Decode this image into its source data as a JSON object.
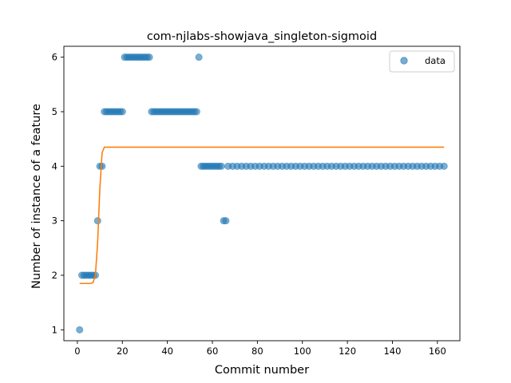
{
  "chart_data": {
    "type": "scatter",
    "title": "com-njlabs-showjava_singleton-sigmoid",
    "xlabel": "Commit number",
    "ylabel": "Number of instance of a feature",
    "xlim": [
      -6,
      170
    ],
    "ylim": [
      0.8,
      6.2
    ],
    "xticks": [
      0,
      20,
      40,
      60,
      80,
      100,
      120,
      140,
      160
    ],
    "yticks": [
      1,
      2,
      3,
      4,
      5,
      6
    ],
    "grid": false,
    "legend": {
      "position": "top-right",
      "entries": [
        "data"
      ]
    },
    "colors": {
      "data": "#1f77b4",
      "fit": "#ff7f0e"
    },
    "series": [
      {
        "name": "data",
        "kind": "scatter",
        "points": [
          [
            1,
            1
          ],
          [
            2,
            2
          ],
          [
            3,
            2
          ],
          [
            4,
            2
          ],
          [
            5,
            2
          ],
          [
            6,
            2
          ],
          [
            7,
            2
          ],
          [
            8,
            2
          ],
          [
            9,
            3
          ],
          [
            10,
            4
          ],
          [
            11,
            4
          ],
          [
            12,
            5
          ],
          [
            13,
            5
          ],
          [
            14,
            5
          ],
          [
            15,
            5
          ],
          [
            16,
            5
          ],
          [
            17,
            5
          ],
          [
            18,
            5
          ],
          [
            19,
            5
          ],
          [
            20,
            5
          ],
          [
            21,
            6
          ],
          [
            22,
            6
          ],
          [
            23,
            6
          ],
          [
            24,
            6
          ],
          [
            25,
            6
          ],
          [
            26,
            6
          ],
          [
            27,
            6
          ],
          [
            28,
            6
          ],
          [
            29,
            6
          ],
          [
            30,
            6
          ],
          [
            31,
            6
          ],
          [
            32,
            6
          ],
          [
            33,
            5
          ],
          [
            34,
            5
          ],
          [
            35,
            5
          ],
          [
            36,
            5
          ],
          [
            37,
            5
          ],
          [
            38,
            5
          ],
          [
            39,
            5
          ],
          [
            40,
            5
          ],
          [
            41,
            5
          ],
          [
            42,
            5
          ],
          [
            43,
            5
          ],
          [
            44,
            5
          ],
          [
            45,
            5
          ],
          [
            46,
            5
          ],
          [
            47,
            5
          ],
          [
            48,
            5
          ],
          [
            49,
            5
          ],
          [
            50,
            5
          ],
          [
            51,
            5
          ],
          [
            52,
            5
          ],
          [
            53,
            5
          ],
          [
            54,
            6
          ],
          [
            55,
            4
          ],
          [
            56,
            4
          ],
          [
            57,
            4
          ],
          [
            58,
            4
          ],
          [
            59,
            4
          ],
          [
            60,
            4
          ],
          [
            61,
            4
          ],
          [
            62,
            4
          ],
          [
            63,
            4
          ],
          [
            64,
            4
          ],
          [
            65,
            3
          ],
          [
            66,
            3
          ],
          [
            67,
            4
          ],
          [
            69,
            4
          ],
          [
            71,
            4
          ],
          [
            73,
            4
          ],
          [
            75,
            4
          ],
          [
            77,
            4
          ],
          [
            79,
            4
          ],
          [
            81,
            4
          ],
          [
            83,
            4
          ],
          [
            85,
            4
          ],
          [
            87,
            4
          ],
          [
            89,
            4
          ],
          [
            91,
            4
          ],
          [
            93,
            4
          ],
          [
            95,
            4
          ],
          [
            97,
            4
          ],
          [
            99,
            4
          ],
          [
            101,
            4
          ],
          [
            103,
            4
          ],
          [
            105,
            4
          ],
          [
            107,
            4
          ],
          [
            109,
            4
          ],
          [
            111,
            4
          ],
          [
            113,
            4
          ],
          [
            115,
            4
          ],
          [
            117,
            4
          ],
          [
            119,
            4
          ],
          [
            121,
            4
          ],
          [
            123,
            4
          ],
          [
            125,
            4
          ],
          [
            127,
            4
          ],
          [
            129,
            4
          ],
          [
            131,
            4
          ],
          [
            133,
            4
          ],
          [
            135,
            4
          ],
          [
            137,
            4
          ],
          [
            139,
            4
          ],
          [
            141,
            4
          ],
          [
            143,
            4
          ],
          [
            145,
            4
          ],
          [
            147,
            4
          ],
          [
            149,
            4
          ],
          [
            151,
            4
          ],
          [
            153,
            4
          ],
          [
            155,
            4
          ],
          [
            157,
            4
          ],
          [
            159,
            4
          ],
          [
            161,
            4
          ],
          [
            163,
            4
          ]
        ]
      },
      {
        "kind": "line",
        "points": [
          [
            1,
            1.85
          ],
          [
            6,
            1.85
          ],
          [
            7,
            1.87
          ],
          [
            8,
            2.0
          ],
          [
            9,
            2.6
          ],
          [
            10,
            3.6
          ],
          [
            11,
            4.25
          ],
          [
            12,
            4.35
          ],
          [
            20,
            4.35
          ],
          [
            60,
            4.35
          ],
          [
            100,
            4.35
          ],
          [
            140,
            4.35
          ],
          [
            163,
            4.35
          ]
        ]
      }
    ]
  }
}
